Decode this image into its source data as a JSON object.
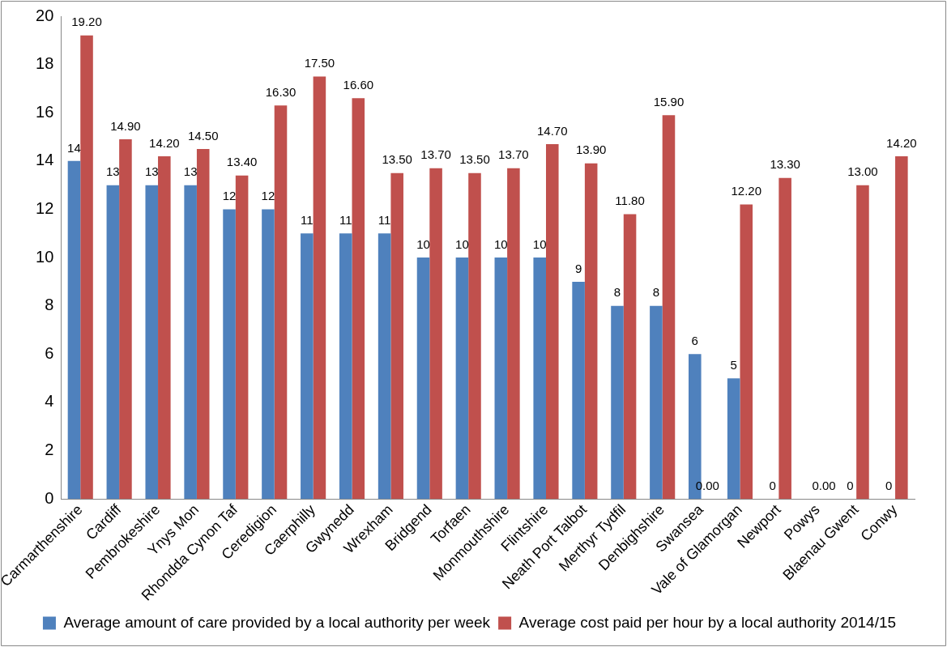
{
  "chart_data": {
    "type": "bar",
    "categories": [
      "Carmarthenshire",
      "Cardiff",
      "Pembrokeshire",
      "Ynys Mon",
      "Rhondda Cynon Taf",
      "Ceredigion",
      "Caerphilly",
      "Gwynedd",
      "Wrexham",
      "Bridgend",
      "Torfaen",
      "Monmouthshire",
      "Flintshire",
      "Neath Port Talbot",
      "Merthyr Tydfil",
      "Denbighshire",
      "Swansea",
      "Vale of Glamorgan",
      "Newport",
      "Powys",
      "Blaenau Gwent",
      "Conwy"
    ],
    "series": [
      {
        "name": "Average amount of care provided by a local authority per week",
        "color": "#4f81bd",
        "values": [
          14,
          13,
          13,
          13,
          12,
          12,
          11,
          11,
          11,
          10,
          10,
          10,
          10,
          9,
          8,
          8,
          6,
          5,
          0,
          0,
          0,
          0
        ],
        "value_labels": [
          "14",
          "13",
          "13",
          "13",
          "12",
          "12",
          "11",
          "11",
          "11",
          "10",
          "10",
          "10",
          "10",
          "9",
          "8",
          "8",
          "6",
          "5",
          "0",
          null,
          "0",
          "0"
        ]
      },
      {
        "name": "Average cost paid per hour by a local authority 2014/15",
        "color": "#c0504d",
        "values": [
          19.2,
          14.9,
          14.2,
          14.5,
          13.4,
          16.3,
          17.5,
          16.6,
          13.5,
          13.7,
          13.5,
          13.7,
          14.7,
          13.9,
          11.8,
          15.9,
          0,
          12.2,
          13.3,
          0,
          13.0,
          14.2
        ],
        "value_labels": [
          "19.20",
          "14.90",
          "14.20",
          "14.50",
          "13.40",
          "16.30",
          "17.50",
          "16.60",
          "13.50",
          "13.70",
          "13.50",
          "13.70",
          "14.70",
          "13.90",
          "11.80",
          "15.90",
          "0.00",
          "12.20",
          "13.30",
          "0.00",
          "13.00",
          "14.20"
        ]
      }
    ],
    "ylim": [
      0,
      20
    ],
    "yticks": [
      0,
      2,
      4,
      6,
      8,
      10,
      12,
      14,
      16,
      18,
      20
    ],
    "grid": false,
    "legend": "bottom"
  }
}
